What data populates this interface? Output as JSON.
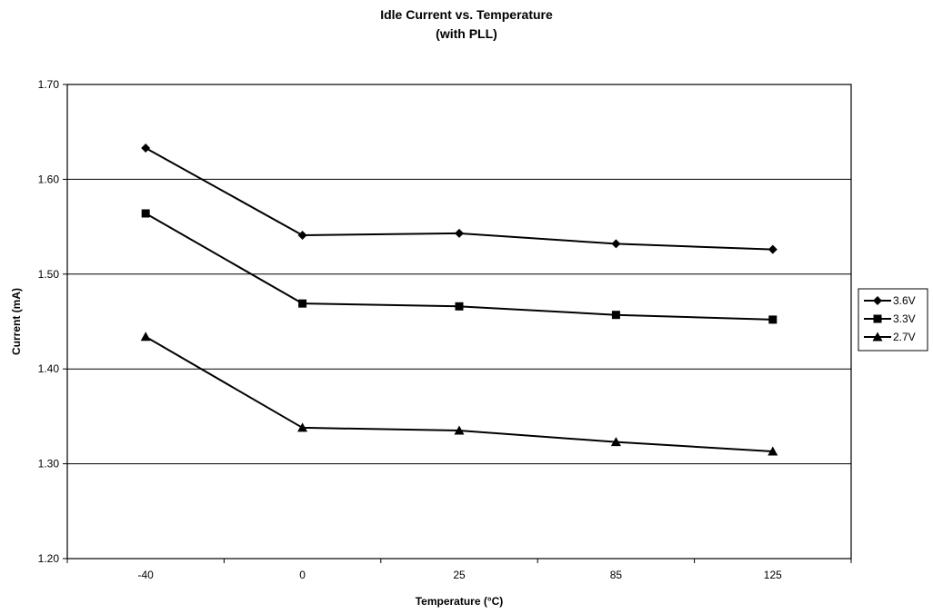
{
  "chart_data": {
    "type": "line",
    "title": "Idle Current vs. Temperature",
    "subtitle": "(with PLL)",
    "xlabel": "Temperature (°C)",
    "ylabel": "Current (mA)",
    "categories": [
      "-40",
      "0",
      "25",
      "85",
      "125"
    ],
    "ylim": [
      1.2,
      1.7
    ],
    "yticks": [
      "1.20",
      "1.30",
      "1.40",
      "1.50",
      "1.60",
      "1.70"
    ],
    "grid": true,
    "legend_position": "right",
    "series": [
      {
        "name": "3.6V",
        "marker": "diamond",
        "values": [
          1.633,
          1.541,
          1.543,
          1.532,
          1.526
        ]
      },
      {
        "name": "3.3V",
        "marker": "square",
        "values": [
          1.564,
          1.469,
          1.466,
          1.457,
          1.452
        ]
      },
      {
        "name": "2.7V",
        "marker": "triangle",
        "values": [
          1.434,
          1.338,
          1.335,
          1.323,
          1.313
        ]
      }
    ]
  }
}
